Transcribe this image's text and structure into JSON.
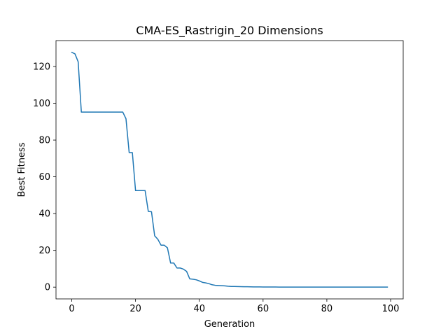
{
  "chart_data": {
    "type": "line",
    "title": "CMA-ES_Rastrigin_20 Dimensions",
    "xlabel": "Generation",
    "ylabel": "Best Fitness",
    "xlim": [
      -4.95,
      103.95
    ],
    "ylim": [
      -6.4,
      134.1
    ],
    "xticks": [
      0,
      20,
      40,
      60,
      80,
      100
    ],
    "yticks": [
      0,
      20,
      40,
      60,
      80,
      100,
      120
    ],
    "grid": false,
    "legend": "none",
    "series": [
      {
        "color": "#1f77b4",
        "x": [
          0,
          1,
          2,
          3,
          4,
          5,
          6,
          7,
          8,
          9,
          10,
          11,
          12,
          13,
          14,
          15,
          16,
          17,
          18,
          19,
          20,
          21,
          22,
          23,
          24,
          25,
          26,
          27,
          28,
          29,
          30,
          31,
          32,
          33,
          34,
          35,
          36,
          37,
          38,
          39,
          40,
          41,
          42,
          43,
          44,
          45,
          46,
          47,
          48,
          49,
          50,
          51,
          52,
          53,
          54,
          55,
          56,
          57,
          58,
          59,
          60,
          61,
          62,
          63,
          64,
          65,
          66,
          67,
          68,
          69,
          70,
          71,
          72,
          73,
          74,
          75,
          76,
          77,
          78,
          79,
          80,
          81,
          82,
          83,
          84,
          85,
          86,
          87,
          88,
          89,
          90,
          91,
          92,
          93,
          94,
          95,
          96,
          97,
          98,
          99
        ],
        "y": [
          127.7,
          126.9,
          122.6,
          95.2,
          95.2,
          95.2,
          95.2,
          95.2,
          95.2,
          95.2,
          95.2,
          95.2,
          95.2,
          95.2,
          95.2,
          95.2,
          95.2,
          91.6,
          73.2,
          73.2,
          52.5,
          52.5,
          52.5,
          52.5,
          41.2,
          41.0,
          27.9,
          26.0,
          22.8,
          22.8,
          21.4,
          13.1,
          13.1,
          10.4,
          10.4,
          9.8,
          8.6,
          4.5,
          4.3,
          4.0,
          3.4,
          2.6,
          2.3,
          1.9,
          1.3,
          1.0,
          0.9,
          0.8,
          0.7,
          0.5,
          0.35,
          0.35,
          0.3,
          0.25,
          0.2,
          0.2,
          0.15,
          0.12,
          0.1,
          0.1,
          0.08,
          0.07,
          0.06,
          0.05,
          0.05,
          0.04,
          0.04,
          0.03,
          0.03,
          0.03,
          0.02,
          0.02,
          0.02,
          0.02,
          0.02,
          0.01,
          0.01,
          0.01,
          0.01,
          0.01,
          0.01,
          0.01,
          0.01,
          0.01,
          0.01,
          0.01,
          0.01,
          0.01,
          0.01,
          0.01,
          0.01,
          0.01,
          0.01,
          0.01,
          0.01,
          0.01,
          0.01,
          0.01,
          0.01,
          0.01
        ]
      }
    ]
  }
}
